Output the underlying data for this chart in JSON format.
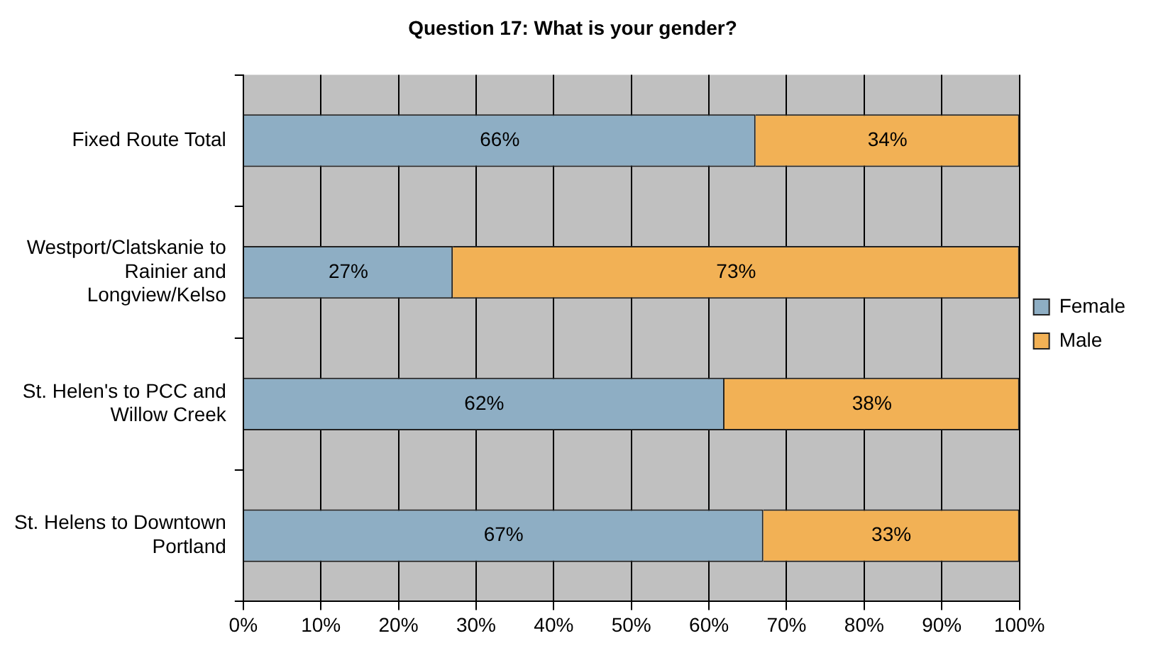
{
  "chart_data": {
    "type": "bar",
    "orientation": "horizontal",
    "stacked": true,
    "title": "Question 17: What is your gender?",
    "categories": [
      "Fixed Route Total",
      "Westport/Clatskanie to Rainier and Longview/Kelso",
      "St. Helen's to PCC and Willow Creek",
      "St. Helens to Downtown Portland"
    ],
    "series": [
      {
        "name": "Female",
        "color": "#8eaec4",
        "values": [
          66,
          27,
          62,
          67
        ],
        "value_labels": [
          "66%",
          "27%",
          "62%",
          "67%"
        ]
      },
      {
        "name": "Male",
        "color": "#f2b155",
        "values": [
          34,
          73,
          38,
          33
        ],
        "value_labels": [
          "34%",
          "73%",
          "38%",
          "33%"
        ]
      }
    ],
    "xlim": [
      0,
      100
    ],
    "xticks": [
      {
        "value": 0,
        "label": "0%"
      },
      {
        "value": 10,
        "label": "10%"
      },
      {
        "value": 20,
        "label": "20%"
      },
      {
        "value": 30,
        "label": "30%"
      },
      {
        "value": 40,
        "label": "40%"
      },
      {
        "value": 50,
        "label": "50%"
      },
      {
        "value": 60,
        "label": "60%"
      },
      {
        "value": 70,
        "label": "70%"
      },
      {
        "value": 80,
        "label": "80%"
      },
      {
        "value": 90,
        "label": "90%"
      },
      {
        "value": 100,
        "label": "100%"
      }
    ],
    "grid": "x",
    "legend": "right"
  }
}
